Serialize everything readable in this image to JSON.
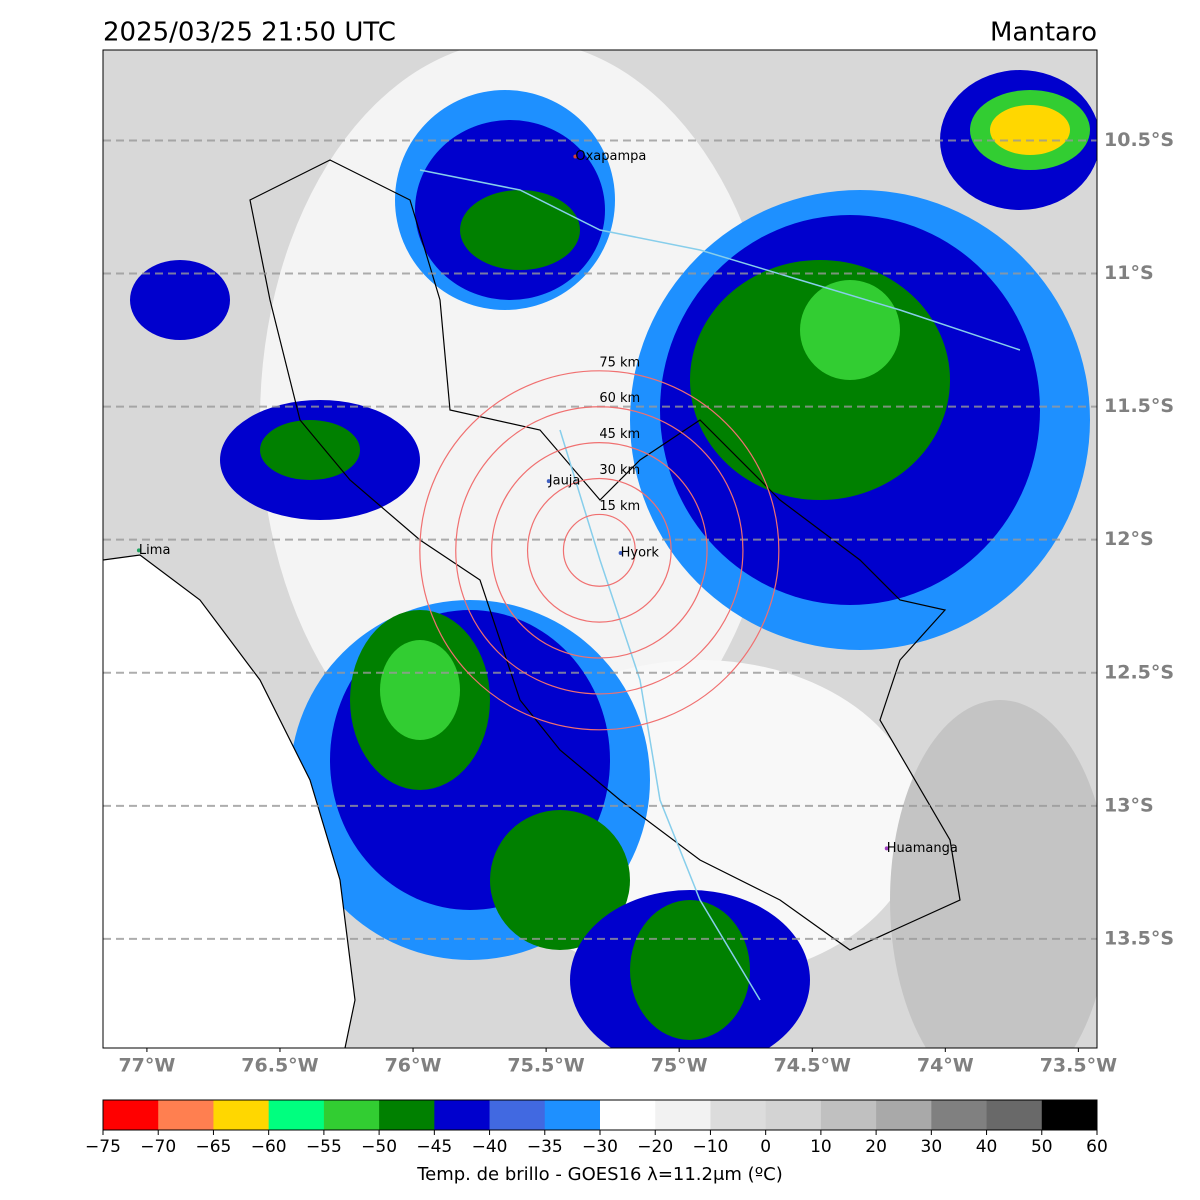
{
  "chart_data": {
    "type": "map",
    "title": "2025/03/25 21:50 UTC",
    "region": "Mantaro",
    "xlim": [
      -77.165,
      -73.43
    ],
    "ylim": [
      -13.91,
      -10.16
    ],
    "xticks": [
      {
        "value": -77,
        "label": "77°W"
      },
      {
        "value": -76.5,
        "label": "76.5°W"
      },
      {
        "value": -76,
        "label": "76°W"
      },
      {
        "value": -75.5,
        "label": "75.5°W"
      },
      {
        "value": -75,
        "label": "75°W"
      },
      {
        "value": -74.5,
        "label": "74.5°W"
      },
      {
        "value": -74,
        "label": "74°W"
      },
      {
        "value": -73.5,
        "label": "73.5°W"
      }
    ],
    "yticks": [
      {
        "value": -10.5,
        "label": "10.5°S"
      },
      {
        "value": -11,
        "label": "11°S"
      },
      {
        "value": -11.5,
        "label": "11.5°S"
      },
      {
        "value": -12,
        "label": "12°S"
      },
      {
        "value": -12.5,
        "label": "12.5°S"
      },
      {
        "value": -13,
        "label": "13°S"
      },
      {
        "value": -13.5,
        "label": "13.5°S"
      }
    ],
    "grid": true,
    "places": [
      {
        "name": "Oxapampa",
        "lon": -75.39,
        "lat": -10.56,
        "color": "#d04040"
      },
      {
        "name": "Lima",
        "lon": -77.03,
        "lat": -12.04,
        "color": "#20a060"
      },
      {
        "name": "Jauja",
        "lon": -75.49,
        "lat": -11.78,
        "color": "#4060c0"
      },
      {
        "name": "Hyork",
        "lon": -75.22,
        "lat": -12.05,
        "color": "#4060c0"
      },
      {
        "name": "Huamanga",
        "lon": -74.22,
        "lat": -13.16,
        "color": "#a040c0"
      }
    ],
    "rings": {
      "lon": -75.3,
      "lat": -12.04,
      "color": "#f07070",
      "radii": [
        {
          "value": 15,
          "label": "15 km"
        },
        {
          "value": 30,
          "label": "30 km"
        },
        {
          "value": 45,
          "label": "45 km"
        },
        {
          "value": 60,
          "label": "60 km"
        },
        {
          "value": 75,
          "label": "75 km"
        }
      ]
    },
    "colorbar": {
      "label": "Temp. de brillo - GOES16 λ=11.2μm (ºC)",
      "bounds": [
        {
          "value": -75,
          "label": "−75"
        },
        {
          "value": -70,
          "label": "−70"
        },
        {
          "value": -65,
          "label": "−65"
        },
        {
          "value": -60,
          "label": "−60"
        },
        {
          "value": -55,
          "label": "−55"
        },
        {
          "value": -50,
          "label": "−50"
        },
        {
          "value": -45,
          "label": "−45"
        },
        {
          "value": -40,
          "label": "−40"
        },
        {
          "value": -35,
          "label": "−35"
        },
        {
          "value": -30,
          "label": "−30"
        },
        {
          "value": -20,
          "label": "−20"
        },
        {
          "value": -10,
          "label": "−10"
        },
        0,
        10,
        20,
        30,
        40,
        50,
        60
      ],
      "colors": [
        "#ff0000",
        "#ff7f50",
        "#ffd700",
        "#00ff7f",
        "#32cd32",
        "#008000",
        "#0000cd",
        "#4169e1",
        "#1e90ff",
        "#ffffff",
        "#f2f2f2",
        "#dcdcdc",
        "#d3d3d3",
        "#c0c0c0",
        "#a9a9a9",
        "#808080",
        "#696969",
        "#000000"
      ]
    }
  }
}
